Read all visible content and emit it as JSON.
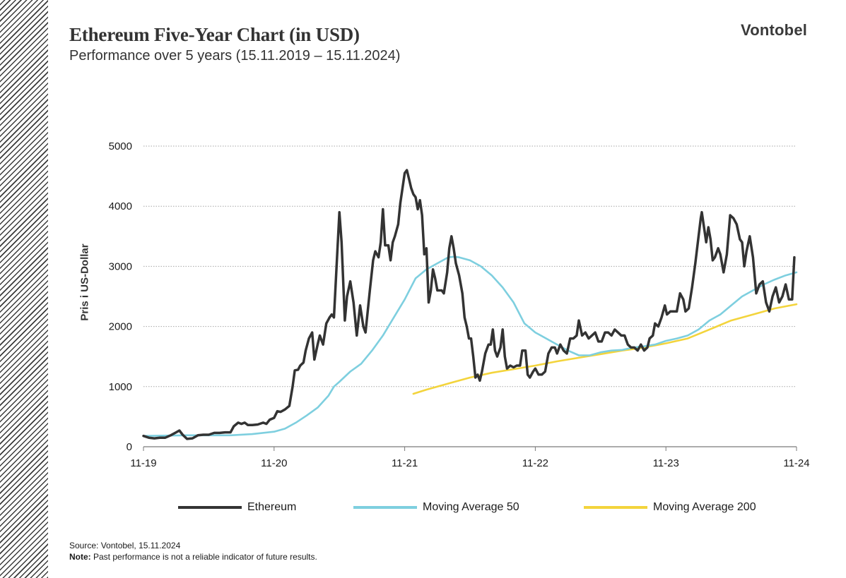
{
  "header": {
    "title": "Ethereum Five-Year Chart (in USD)",
    "subtitle": "Performance over 5 years (15.11.2019 – 15.11.2024)",
    "logo": "Vontobel"
  },
  "footer": {
    "source": "Source: Vontobel,  15.11.2024",
    "note_label": "Note:",
    "note_text": " Past performance  is not a reliable indicator of future results."
  },
  "chart_data": {
    "type": "line",
    "title": "Ethereum Five-Year Chart (in USD)",
    "subtitle": "Performance over 5 years (15.11.2019 – 15.11.2024)",
    "ylabel": "Pris i US-Dollar",
    "xlabel": "",
    "xlim": [
      0,
      60
    ],
    "ylim": [
      0,
      5000
    ],
    "yticks": [
      0,
      1000,
      2000,
      3000,
      4000,
      5000
    ],
    "xticks": [
      {
        "x": 0,
        "label": "11-19"
      },
      {
        "x": 12,
        "label": "11-20"
      },
      {
        "x": 24,
        "label": "11-21"
      },
      {
        "x": 36,
        "label": "11-22"
      },
      {
        "x": 48,
        "label": "11-23"
      },
      {
        "x": 60,
        "label": "11-24"
      }
    ],
    "grid": "horizontal",
    "legend_position": "bottom",
    "series": [
      {
        "name": "Ethereum",
        "color": "#333333",
        "points": [
          [
            0,
            180
          ],
          [
            0.5,
            150
          ],
          [
            1,
            140
          ],
          [
            1.5,
            150
          ],
          [
            2,
            150
          ],
          [
            2.5,
            190
          ],
          [
            3,
            240
          ],
          [
            3.3,
            270
          ],
          [
            3.6,
            200
          ],
          [
            4,
            130
          ],
          [
            4.5,
            140
          ],
          [
            5,
            190
          ],
          [
            5.5,
            200
          ],
          [
            6,
            200
          ],
          [
            6.5,
            230
          ],
          [
            7,
            230
          ],
          [
            7.5,
            240
          ],
          [
            8,
            240
          ],
          [
            8.3,
            340
          ],
          [
            8.7,
            400
          ],
          [
            9,
            380
          ],
          [
            9.3,
            400
          ],
          [
            9.6,
            360
          ],
          [
            10,
            360
          ],
          [
            10.5,
            370
          ],
          [
            11,
            400
          ],
          [
            11.3,
            380
          ],
          [
            11.6,
            450
          ],
          [
            12,
            480
          ],
          [
            12.3,
            590
          ],
          [
            12.6,
            580
          ],
          [
            13,
            620
          ],
          [
            13.4,
            680
          ],
          [
            13.7,
            1000
          ],
          [
            13.9,
            1270
          ],
          [
            14.2,
            1280
          ],
          [
            14.4,
            1350
          ],
          [
            14.7,
            1400
          ],
          [
            14.9,
            1600
          ],
          [
            15.2,
            1800
          ],
          [
            15.5,
            1900
          ],
          [
            15.7,
            1450
          ],
          [
            16,
            1700
          ],
          [
            16.2,
            1850
          ],
          [
            16.5,
            1700
          ],
          [
            16.8,
            2050
          ],
          [
            17.1,
            2150
          ],
          [
            17.3,
            2200
          ],
          [
            17.5,
            2150
          ],
          [
            17.8,
            3200
          ],
          [
            18,
            3900
          ],
          [
            18.2,
            3400
          ],
          [
            18.5,
            2100
          ],
          [
            18.7,
            2500
          ],
          [
            19,
            2750
          ],
          [
            19.3,
            2400
          ],
          [
            19.6,
            1850
          ],
          [
            19.9,
            2350
          ],
          [
            20.2,
            2000
          ],
          [
            20.4,
            1900
          ],
          [
            20.8,
            2600
          ],
          [
            21.1,
            3100
          ],
          [
            21.3,
            3250
          ],
          [
            21.6,
            3150
          ],
          [
            21.8,
            3400
          ],
          [
            22,
            3950
          ],
          [
            22.2,
            3350
          ],
          [
            22.5,
            3350
          ],
          [
            22.7,
            3100
          ],
          [
            22.9,
            3400
          ],
          [
            23.1,
            3500
          ],
          [
            23.4,
            3700
          ],
          [
            23.6,
            4050
          ],
          [
            23.8,
            4300
          ],
          [
            24,
            4550
          ],
          [
            24.2,
            4600
          ],
          [
            24.4,
            4450
          ],
          [
            24.6,
            4300
          ],
          [
            24.8,
            4200
          ],
          [
            25,
            4150
          ],
          [
            25.2,
            3950
          ],
          [
            25.4,
            4100
          ],
          [
            25.6,
            3850
          ],
          [
            25.8,
            3200
          ],
          [
            26,
            3300
          ],
          [
            26.2,
            2400
          ],
          [
            26.4,
            2600
          ],
          [
            26.6,
            2950
          ],
          [
            26.8,
            2800
          ],
          [
            27,
            2600
          ],
          [
            27.4,
            2600
          ],
          [
            27.6,
            2550
          ],
          [
            27.9,
            2900
          ],
          [
            28.1,
            3300
          ],
          [
            28.3,
            3500
          ],
          [
            28.5,
            3300
          ],
          [
            28.7,
            3050
          ],
          [
            29,
            2850
          ],
          [
            29.3,
            2550
          ],
          [
            29.5,
            2150
          ],
          [
            29.7,
            2000
          ],
          [
            29.9,
            1800
          ],
          [
            30.1,
            1800
          ],
          [
            30.3,
            1500
          ],
          [
            30.5,
            1150
          ],
          [
            30.7,
            1200
          ],
          [
            30.9,
            1100
          ],
          [
            31.1,
            1250
          ],
          [
            31.4,
            1550
          ],
          [
            31.7,
            1700
          ],
          [
            31.9,
            1700
          ],
          [
            32.1,
            1950
          ],
          [
            32.3,
            1600
          ],
          [
            32.5,
            1500
          ],
          [
            32.8,
            1650
          ],
          [
            33,
            1950
          ],
          [
            33.2,
            1500
          ],
          [
            33.4,
            1300
          ],
          [
            33.7,
            1350
          ],
          [
            34,
            1320
          ],
          [
            34.3,
            1350
          ],
          [
            34.6,
            1350
          ],
          [
            34.8,
            1600
          ],
          [
            35.1,
            1600
          ],
          [
            35.3,
            1200
          ],
          [
            35.5,
            1150
          ],
          [
            35.8,
            1250
          ],
          [
            36,
            1300
          ],
          [
            36.3,
            1200
          ],
          [
            36.6,
            1200
          ],
          [
            36.9,
            1250
          ],
          [
            37.2,
            1550
          ],
          [
            37.5,
            1650
          ],
          [
            37.8,
            1650
          ],
          [
            38,
            1550
          ],
          [
            38.3,
            1700
          ],
          [
            38.6,
            1600
          ],
          [
            38.9,
            1550
          ],
          [
            39.2,
            1800
          ],
          [
            39.5,
            1800
          ],
          [
            39.8,
            1850
          ],
          [
            40,
            2100
          ],
          [
            40.3,
            1850
          ],
          [
            40.6,
            1900
          ],
          [
            40.9,
            1800
          ],
          [
            41.2,
            1850
          ],
          [
            41.5,
            1900
          ],
          [
            41.8,
            1750
          ],
          [
            42.1,
            1750
          ],
          [
            42.4,
            1900
          ],
          [
            42.7,
            1900
          ],
          [
            43,
            1850
          ],
          [
            43.3,
            1950
          ],
          [
            43.6,
            1900
          ],
          [
            43.9,
            1850
          ],
          [
            44.2,
            1850
          ],
          [
            44.5,
            1700
          ],
          [
            44.8,
            1650
          ],
          [
            45.1,
            1650
          ],
          [
            45.4,
            1600
          ],
          [
            45.7,
            1700
          ],
          [
            46,
            1600
          ],
          [
            46.3,
            1650
          ],
          [
            46.5,
            1800
          ],
          [
            46.8,
            1850
          ],
          [
            47,
            2050
          ],
          [
            47.3,
            2000
          ],
          [
            47.6,
            2150
          ],
          [
            47.9,
            2350
          ],
          [
            48.1,
            2200
          ],
          [
            48.4,
            2250
          ],
          [
            48.7,
            2250
          ],
          [
            49,
            2250
          ],
          [
            49.3,
            2550
          ],
          [
            49.6,
            2450
          ],
          [
            49.8,
            2250
          ],
          [
            50.1,
            2300
          ],
          [
            50.4,
            2650
          ],
          [
            50.7,
            3050
          ],
          [
            51,
            3500
          ],
          [
            51.2,
            3800
          ],
          [
            51.3,
            3900
          ],
          [
            51.5,
            3650
          ],
          [
            51.7,
            3400
          ],
          [
            51.9,
            3650
          ],
          [
            52.1,
            3450
          ],
          [
            52.3,
            3100
          ],
          [
            52.5,
            3150
          ],
          [
            52.8,
            3300
          ],
          [
            53,
            3200
          ],
          [
            53.3,
            2900
          ],
          [
            53.6,
            3200
          ],
          [
            53.9,
            3850
          ],
          [
            54.2,
            3800
          ],
          [
            54.5,
            3700
          ],
          [
            54.8,
            3450
          ],
          [
            55,
            3400
          ],
          [
            55.2,
            3000
          ],
          [
            55.4,
            3250
          ],
          [
            55.7,
            3500
          ],
          [
            56,
            3150
          ],
          [
            56.3,
            2550
          ],
          [
            56.6,
            2700
          ],
          [
            56.9,
            2750
          ],
          [
            57.2,
            2400
          ],
          [
            57.5,
            2250
          ],
          [
            57.8,
            2500
          ],
          [
            58.1,
            2650
          ],
          [
            58.4,
            2400
          ],
          [
            58.7,
            2500
          ],
          [
            59,
            2700
          ],
          [
            59.3,
            2450
          ],
          [
            59.6,
            2450
          ],
          [
            59.8,
            3150
          ]
        ]
      },
      {
        "name": "Moving Average 50",
        "color": "#7ecfdf",
        "points": [
          [
            0,
            180
          ],
          [
            4,
            190
          ],
          [
            8,
            190
          ],
          [
            10,
            210
          ],
          [
            12,
            250
          ],
          [
            13,
            300
          ],
          [
            14,
            400
          ],
          [
            15,
            520
          ],
          [
            16,
            650
          ],
          [
            17,
            850
          ],
          [
            17.5,
            1000
          ],
          [
            18,
            1080
          ],
          [
            19,
            1250
          ],
          [
            20,
            1380
          ],
          [
            21,
            1600
          ],
          [
            22,
            1850
          ],
          [
            23,
            2150
          ],
          [
            24,
            2450
          ],
          [
            25,
            2800
          ],
          [
            26,
            2950
          ],
          [
            27,
            3050
          ],
          [
            28,
            3150
          ],
          [
            28.5,
            3160
          ],
          [
            29,
            3150
          ],
          [
            30,
            3100
          ],
          [
            31,
            3000
          ],
          [
            32,
            2850
          ],
          [
            33,
            2650
          ],
          [
            34,
            2400
          ],
          [
            35,
            2050
          ],
          [
            36,
            1900
          ],
          [
            37,
            1800
          ],
          [
            38,
            1700
          ],
          [
            39,
            1600
          ],
          [
            40,
            1520
          ],
          [
            41,
            1520
          ],
          [
            42,
            1570
          ],
          [
            43,
            1600
          ],
          [
            44,
            1610
          ],
          [
            45,
            1650
          ],
          [
            46,
            1670
          ],
          [
            47,
            1700
          ],
          [
            48,
            1760
          ],
          [
            49,
            1800
          ],
          [
            50,
            1850
          ],
          [
            51,
            1950
          ],
          [
            52,
            2100
          ],
          [
            53,
            2200
          ],
          [
            54,
            2350
          ],
          [
            55,
            2500
          ],
          [
            56,
            2600
          ],
          [
            57,
            2700
          ],
          [
            58,
            2780
          ],
          [
            59,
            2850
          ],
          [
            60,
            2900
          ]
        ]
      },
      {
        "name": "Moving Average 200",
        "color": "#f3d43c",
        "points": [
          [
            24.8,
            880
          ],
          [
            26,
            950
          ],
          [
            28,
            1050
          ],
          [
            30,
            1150
          ],
          [
            32,
            1230
          ],
          [
            34,
            1290
          ],
          [
            36,
            1350
          ],
          [
            38,
            1420
          ],
          [
            40,
            1480
          ],
          [
            42,
            1540
          ],
          [
            44,
            1600
          ],
          [
            46,
            1650
          ],
          [
            48,
            1720
          ],
          [
            50,
            1800
          ],
          [
            52,
            1950
          ],
          [
            54,
            2100
          ],
          [
            56,
            2200
          ],
          [
            58,
            2300
          ],
          [
            60,
            2370
          ]
        ]
      }
    ]
  }
}
